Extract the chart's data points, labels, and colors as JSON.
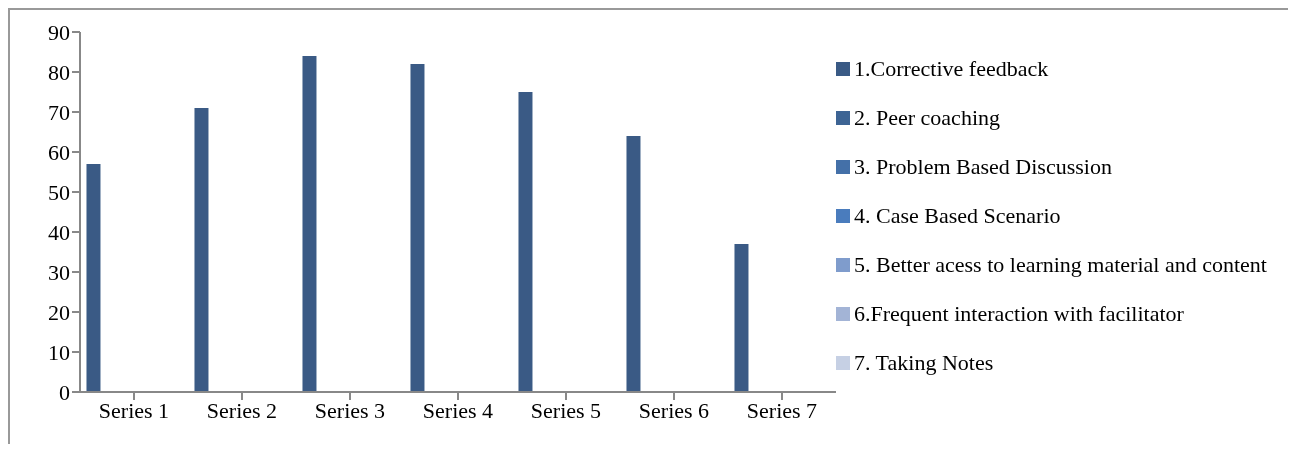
{
  "chart_data": {
    "type": "bar",
    "categories": [
      "Series 1",
      "Series 2",
      "Series 3",
      "Series 4",
      "Series 5",
      "Series 6",
      "Series 7"
    ],
    "series": [
      {
        "name": "1.Corrective feedback",
        "color": "#3a5a85",
        "values": [
          57,
          71,
          84,
          82,
          75,
          64,
          37
        ]
      },
      {
        "name": "2. Peer coaching",
        "color": "#3d6494",
        "values": [
          null,
          null,
          null,
          null,
          null,
          null,
          null
        ]
      },
      {
        "name": "3. Problem Based  Discussion",
        "color": "#4470a8",
        "values": [
          null,
          null,
          null,
          null,
          null,
          null,
          null
        ]
      },
      {
        "name": "4. Case Based Scenario",
        "color": "#4a7cbd",
        "values": [
          null,
          null,
          null,
          null,
          null,
          null,
          null
        ]
      },
      {
        "name": "5. Better acess to learning material and content",
        "color": "#7f9ccc",
        "values": [
          null,
          null,
          null,
          null,
          null,
          null,
          null
        ]
      },
      {
        "name": "6.Frequent interaction with facilitator",
        "color": "#a3b4d6",
        "values": [
          null,
          null,
          null,
          null,
          null,
          null,
          null
        ]
      },
      {
        "name": "7. Taking Notes",
        "color": "#c6d0e4",
        "values": [
          null,
          null,
          null,
          null,
          null,
          null,
          null
        ]
      }
    ],
    "ylim": [
      0,
      90
    ],
    "yticks": [
      0,
      10,
      20,
      30,
      40,
      50,
      60,
      70,
      80,
      90
    ],
    "grid": false,
    "legend": "right"
  }
}
